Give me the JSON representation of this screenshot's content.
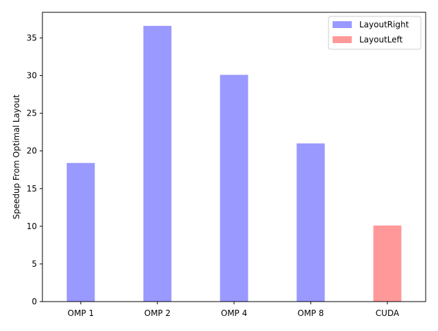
{
  "chart_data": {
    "type": "bar",
    "categories": [
      "OMP 1",
      "OMP 2",
      "OMP 4",
      "OMP 8",
      "CUDA"
    ],
    "series": [
      {
        "name": "LayoutRight",
        "color": "#9999ff",
        "values": [
          18.4,
          36.6,
          30.1,
          21.0,
          null
        ]
      },
      {
        "name": "LayoutLeft",
        "color": "#ff9999",
        "values": [
          null,
          null,
          null,
          null,
          10.1
        ]
      }
    ],
    "title": "",
    "xlabel": "",
    "ylabel": "Speedup From Optimal Layout",
    "ylim": [
      0,
      38.4
    ],
    "yticks": [
      0,
      5,
      10,
      15,
      20,
      25,
      30,
      35
    ],
    "grid": false,
    "legend_position": "top-right"
  }
}
